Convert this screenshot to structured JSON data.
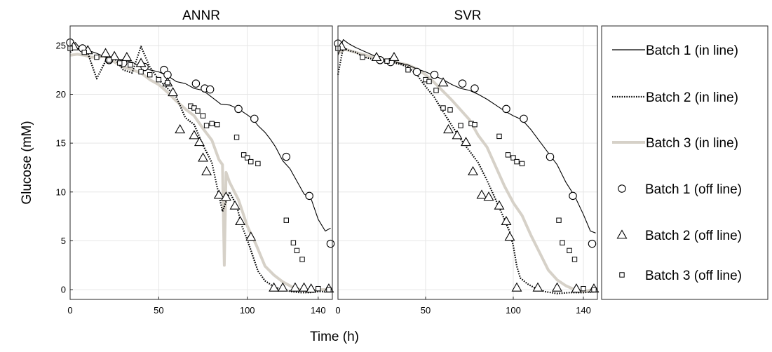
{
  "chart_data": [
    {
      "type": "line",
      "title": "ANNR",
      "xlabel": "Time (h)",
      "ylabel": "Glucose (mM)",
      "xlim": [
        0,
        148
      ],
      "ylim": [
        -1,
        27
      ],
      "xticks": [
        "0",
        "50",
        "100",
        "140"
      ],
      "xtick_values": [
        0,
        50,
        100,
        140
      ],
      "yticks": [
        "0",
        "5",
        "10",
        "15",
        "20",
        "25"
      ],
      "ytick_values": [
        0,
        5,
        10,
        15,
        20,
        25
      ],
      "grid": true,
      "series": [
        {
          "name": "Batch 1 (in line)",
          "style": "solid",
          "color": "#000000",
          "x": [
            0,
            3,
            6,
            10,
            15,
            20,
            25,
            30,
            35,
            40,
            45,
            50,
            55,
            60,
            65,
            70,
            75,
            80,
            85,
            90,
            95,
            100,
            103,
            106,
            110,
            113,
            116,
            120,
            124,
            128,
            132,
            136,
            140,
            144,
            147
          ],
          "y": [
            24.8,
            25.3,
            24.6,
            24.5,
            24.2,
            23.8,
            23.7,
            23.5,
            23.3,
            22.8,
            22.5,
            22.3,
            21.9,
            21.3,
            21.1,
            20.6,
            20.4,
            19.7,
            19.0,
            18.9,
            18.5,
            17.9,
            17.5,
            16.8,
            16.1,
            15.4,
            14.6,
            13.2,
            12.4,
            11.1,
            9.8,
            9.3,
            7.2,
            6.0,
            6.3
          ]
        },
        {
          "name": "Batch 2 (in line)",
          "style": "dotted",
          "color": "#000000",
          "x": [
            0,
            3,
            6,
            10,
            15,
            20,
            25,
            30,
            35,
            40,
            45,
            50,
            55,
            60,
            65,
            70,
            75,
            80,
            83,
            86,
            90,
            94,
            97,
            100,
            103,
            106,
            110,
            115,
            120,
            125,
            130,
            135,
            140,
            145,
            147
          ],
          "y": [
            24.3,
            24.8,
            24.6,
            24.2,
            21.6,
            23.4,
            23.7,
            22.5,
            22.2,
            24.9,
            22.8,
            21.5,
            20.6,
            19.7,
            17.6,
            16.9,
            14.8,
            13.0,
            10.5,
            8.0,
            10.0,
            8.6,
            6.5,
            5.1,
            3.5,
            1.9,
            0.9,
            0.3,
            0.0,
            -0.2,
            -0.3,
            -0.3,
            -0.2,
            -0.2,
            -0.1
          ]
        },
        {
          "name": "Batch 3 (in line)",
          "style": "thick",
          "color": "#d6d1c8",
          "x": [
            0,
            4,
            8,
            12,
            16,
            20,
            25,
            30,
            35,
            40,
            45,
            50,
            55,
            60,
            65,
            70,
            75,
            80,
            84,
            86,
            87,
            88,
            90,
            95,
            100,
            105,
            110,
            115,
            120,
            125,
            130,
            135,
            140,
            145,
            147
          ],
          "y": [
            24.0,
            24.1,
            24.0,
            23.8,
            23.8,
            23.9,
            23.3,
            22.8,
            22.5,
            22.2,
            21.5,
            21.0,
            20.2,
            19.3,
            18.5,
            17.8,
            16.5,
            15.3,
            13.3,
            12.8,
            2.5,
            12.0,
            11.0,
            9.2,
            6.5,
            4.6,
            2.4,
            1.5,
            0.8,
            0.3,
            0.0,
            -0.2,
            0.0,
            0.0,
            -0.1
          ]
        },
        {
          "name": "Batch 1 (off line)",
          "marker": "circle",
          "x": [
            0,
            7,
            22,
            30,
            42,
            53,
            55,
            71,
            76,
            79,
            95,
            104,
            122,
            135,
            147
          ],
          "y": [
            25.3,
            24.7,
            23.5,
            23.2,
            22.8,
            22.5,
            22.0,
            21.1,
            20.6,
            20.5,
            18.5,
            17.5,
            13.6,
            9.6,
            4.7
          ]
        },
        {
          "name": "Batch 2 (off line)",
          "marker": "triangle",
          "x": [
            2,
            10,
            20,
            25,
            32,
            40,
            55,
            58,
            62,
            70,
            73,
            75,
            77,
            84,
            88,
            93,
            96,
            102,
            115,
            120,
            127,
            132,
            136,
            146
          ],
          "y": [
            24.9,
            24.5,
            24.2,
            23.9,
            23.8,
            23.2,
            21.2,
            20.2,
            16.4,
            15.8,
            15.1,
            13.5,
            12.1,
            9.7,
            9.5,
            8.6,
            7.0,
            5.4,
            0.2,
            0.2,
            0.2,
            0.2,
            0.1,
            0.1
          ]
        },
        {
          "name": "Batch 3 (off line)",
          "marker": "square",
          "x": [
            0,
            8,
            15,
            22,
            28,
            34,
            40,
            45,
            50,
            55,
            68,
            70,
            72,
            75,
            77,
            80,
            83,
            94,
            98,
            100,
            102,
            106,
            122,
            126,
            128,
            131,
            140,
            146
          ],
          "y": [
            24.7,
            24.3,
            23.8,
            23.5,
            23.2,
            23.0,
            22.3,
            22.0,
            21.5,
            21.2,
            18.8,
            18.6,
            18.3,
            17.8,
            16.8,
            17.0,
            16.9,
            15.6,
            13.8,
            13.5,
            13.1,
            12.9,
            7.1,
            4.8,
            4.0,
            3.1,
            0.1,
            0.0
          ]
        }
      ]
    },
    {
      "type": "line",
      "title": "SVR",
      "xlabel": "Time (h)",
      "ylabel": "",
      "xlim": [
        0,
        148
      ],
      "ylim": [
        -1,
        27
      ],
      "xticks": [
        "0",
        "50",
        "100",
        "140"
      ],
      "xtick_values": [
        0,
        50,
        100,
        140
      ],
      "grid": true,
      "series": [
        {
          "name": "Batch 1 (in line)",
          "style": "solid",
          "color": "#000000",
          "x": [
            0,
            3,
            6,
            10,
            15,
            20,
            25,
            30,
            35,
            40,
            45,
            50,
            55,
            60,
            65,
            70,
            75,
            80,
            85,
            90,
            95,
            100,
            105,
            110,
            115,
            120,
            125,
            130,
            135,
            140,
            144,
            147
          ],
          "y": [
            24.0,
            25.6,
            25.2,
            24.8,
            24.4,
            24.0,
            23.6,
            23.5,
            23.2,
            23.0,
            22.6,
            22.3,
            21.9,
            21.5,
            21.0,
            20.6,
            20.4,
            20.0,
            19.5,
            18.9,
            18.3,
            17.8,
            17.4,
            16.4,
            15.2,
            14.0,
            12.8,
            11.0,
            9.6,
            7.7,
            6.0,
            5.8
          ]
        },
        {
          "name": "Batch 2 (in line)",
          "style": "dotted",
          "color": "#000000",
          "x": [
            0,
            3,
            6,
            10,
            15,
            20,
            25,
            30,
            35,
            40,
            45,
            50,
            55,
            60,
            65,
            70,
            75,
            80,
            85,
            90,
            94,
            98,
            100,
            102,
            104,
            108,
            112,
            118,
            125,
            132,
            140,
            147
          ],
          "y": [
            22.0,
            24.8,
            24.5,
            24.3,
            23.8,
            23.6,
            23.4,
            23.3,
            23.1,
            22.8,
            22.0,
            20.8,
            19.7,
            18.2,
            16.8,
            15.4,
            14.2,
            13.0,
            11.2,
            9.2,
            7.6,
            5.9,
            4.5,
            2.4,
            1.2,
            0.6,
            0.2,
            -0.2,
            -0.4,
            -0.3,
            -0.3,
            -0.2
          ]
        },
        {
          "name": "Batch 3 (in line)",
          "style": "thick",
          "color": "#d6d1c8",
          "x": [
            0,
            4,
            8,
            12,
            16,
            20,
            25,
            30,
            35,
            40,
            45,
            50,
            55,
            60,
            65,
            70,
            75,
            80,
            85,
            90,
            95,
            100,
            105,
            110,
            115,
            120,
            125,
            130,
            135,
            140,
            145,
            147
          ],
          "y": [
            24.2,
            24.6,
            24.4,
            24.2,
            24.0,
            23.8,
            23.6,
            23.4,
            23.2,
            23.0,
            22.6,
            22.0,
            21.2,
            20.3,
            19.4,
            18.4,
            17.4,
            15.8,
            14.6,
            12.6,
            10.6,
            8.9,
            7.6,
            5.6,
            3.8,
            2.0,
            1.0,
            0.4,
            0.0,
            -0.2,
            0.0,
            0.0
          ]
        },
        {
          "name": "Batch 1 (off line)",
          "marker": "circle",
          "x": [
            0,
            24,
            30,
            45,
            55,
            71,
            78,
            96,
            106,
            121,
            134,
            145
          ],
          "y": [
            25.2,
            23.5,
            23.3,
            22.3,
            22.0,
            21.1,
            20.6,
            18.5,
            17.5,
            13.6,
            9.6,
            4.7
          ]
        },
        {
          "name": "Batch 2 (off line)",
          "marker": "triangle",
          "x": [
            2,
            22,
            32,
            60,
            63,
            68,
            73,
            77,
            82,
            86,
            92,
            96,
            98,
            102,
            114,
            125,
            136,
            146
          ],
          "y": [
            24.9,
            23.8,
            23.8,
            21.2,
            16.4,
            15.8,
            15.1,
            12.1,
            9.7,
            9.5,
            8.6,
            7.0,
            5.4,
            0.2,
            0.2,
            0.2,
            0.1,
            0.1
          ]
        },
        {
          "name": "Batch 3 (off line)",
          "marker": "square",
          "x": [
            0,
            14,
            28,
            40,
            50,
            52,
            56,
            60,
            64,
            70,
            76,
            78,
            92,
            97,
            100,
            102,
            105,
            126,
            128,
            132,
            135,
            140,
            146
          ],
          "y": [
            24.7,
            23.8,
            23.4,
            22.5,
            21.5,
            21.3,
            20.4,
            18.6,
            18.4,
            16.8,
            17.0,
            16.9,
            15.7,
            13.8,
            13.5,
            13.1,
            12.9,
            7.1,
            4.8,
            4.0,
            3.1,
            0.1,
            0.0
          ]
        }
      ]
    }
  ],
  "legend": {
    "placement": "right",
    "entries": [
      {
        "label": "Batch 1 (in line)",
        "kind": "line",
        "style": "solid"
      },
      {
        "label": "Batch 2 (in line)",
        "kind": "line",
        "style": "dotted"
      },
      {
        "label": "Batch 3 (in line)",
        "kind": "line",
        "style": "thick"
      },
      {
        "label": "Batch 1 (off line)",
        "kind": "marker",
        "marker": "circle"
      },
      {
        "label": "Batch 2 (off line)",
        "kind": "marker",
        "marker": "triangle"
      },
      {
        "label": "Batch 3 (off line)",
        "kind": "marker",
        "marker": "square"
      }
    ]
  },
  "colors": {
    "line_black": "#000000",
    "line_beige": "#d6d1c8",
    "grid": "#e6e6e6",
    "marker_fill": "#ffffff"
  }
}
